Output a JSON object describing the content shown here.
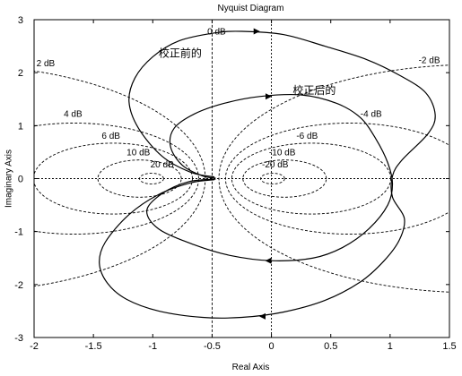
{
  "chart_data": {
    "type": "line",
    "title": "Nyquist Diagram",
    "xlabel": "Real Axis",
    "ylabel": "Imaginary Axis",
    "xlim": [
      -2,
      1.5
    ],
    "ylim": [
      -3,
      3
    ],
    "xticks": [
      -2,
      -1.5,
      -1,
      -0.5,
      0,
      0.5,
      1,
      1.5
    ],
    "yticks": [
      -3,
      -2,
      -1,
      0,
      1,
      2,
      3
    ],
    "xtick_labels": [
      "-2",
      "-1.5",
      "-1",
      "-0.5",
      "0",
      "0.5",
      "1",
      "1.5"
    ],
    "ytick_labels": [
      "-3",
      "-2",
      "-1",
      "0",
      "1",
      "2",
      "3"
    ],
    "grid": "M-circles (dashed)",
    "series": [
      {
        "name": "校正前的",
        "label_pos": [
          -0.95,
          2.3
        ],
        "points": [
          [
            -0.48,
            0.03
          ],
          [
            -0.68,
            0.12
          ],
          [
            -0.92,
            0.42
          ],
          [
            -1.12,
            0.95
          ],
          [
            -1.2,
            1.45
          ],
          [
            -1.15,
            1.9
          ],
          [
            -1.0,
            2.3
          ],
          [
            -0.78,
            2.6
          ],
          [
            -0.48,
            2.75
          ],
          [
            -0.25,
            2.78
          ],
          [
            0.1,
            2.72
          ],
          [
            0.45,
            2.5
          ],
          [
            0.8,
            2.25
          ],
          [
            1.08,
            1.95
          ],
          [
            1.3,
            1.62
          ],
          [
            1.38,
            1.2
          ],
          [
            1.32,
            0.85
          ],
          [
            1.1,
            0.35
          ],
          [
            1.02,
            0.05
          ],
          [
            1.02,
            -0.35
          ],
          [
            1.12,
            -0.75
          ],
          [
            1.08,
            -1.15
          ],
          [
            0.95,
            -1.55
          ],
          [
            0.75,
            -1.95
          ],
          [
            0.45,
            -2.3
          ],
          [
            0.1,
            -2.52
          ],
          [
            -0.25,
            -2.62
          ],
          [
            -0.58,
            -2.62
          ],
          [
            -0.95,
            -2.5
          ],
          [
            -1.22,
            -2.28
          ],
          [
            -1.38,
            -1.98
          ],
          [
            -1.45,
            -1.6
          ],
          [
            -1.4,
            -1.2
          ],
          [
            -1.2,
            -0.68
          ],
          [
            -0.95,
            -0.3
          ],
          [
            -0.68,
            -0.08
          ],
          [
            -0.48,
            -0.02
          ]
        ],
        "arrows": [
          [
            -0.15,
            2.78,
            1
          ],
          [
            -0.05,
            -2.6,
            -1
          ]
        ]
      },
      {
        "name": "校正后的",
        "label_pos": [
          0.18,
          1.6
        ],
        "points": [
          [
            -0.47,
            0.01
          ],
          [
            -0.58,
            0.05
          ],
          [
            -0.75,
            0.25
          ],
          [
            -0.85,
            0.6
          ],
          [
            -0.82,
            0.95
          ],
          [
            -0.65,
            1.22
          ],
          [
            -0.4,
            1.42
          ],
          [
            -0.1,
            1.55
          ],
          [
            0.25,
            1.58
          ],
          [
            0.55,
            1.42
          ],
          [
            0.75,
            1.15
          ],
          [
            0.88,
            0.75
          ],
          [
            0.98,
            0.3
          ],
          [
            1.02,
            -0.1
          ],
          [
            0.98,
            -0.5
          ],
          [
            0.82,
            -0.95
          ],
          [
            0.6,
            -1.3
          ],
          [
            0.35,
            -1.5
          ],
          [
            0.0,
            -1.55
          ],
          [
            -0.35,
            -1.45
          ],
          [
            -0.65,
            -1.25
          ],
          [
            -0.95,
            -0.95
          ],
          [
            -1.05,
            -0.6
          ],
          [
            -0.92,
            -0.28
          ],
          [
            -0.7,
            -0.06
          ],
          [
            -0.47,
            -0.01
          ]
        ],
        "arrows": [
          [
            -0.05,
            1.55,
            1
          ],
          [
            0.0,
            -1.55,
            -1
          ]
        ]
      }
    ],
    "m_circles": [
      {
        "db": 0,
        "label": "0 dB",
        "label_pos": [
          -0.54,
          2.72
        ]
      },
      {
        "db": 2,
        "label": "2 dB",
        "label_pos": [
          -1.98,
          2.12
        ]
      },
      {
        "db": -2,
        "label": "-2 dB",
        "label_pos": [
          1.24,
          2.18
        ]
      },
      {
        "db": 4,
        "label": "4 dB",
        "label_pos": [
          -1.75,
          1.17
        ]
      },
      {
        "db": -4,
        "label": "-4 dB",
        "label_pos": [
          0.75,
          1.17
        ]
      },
      {
        "db": 6,
        "label": "6 dB",
        "label_pos": [
          -1.43,
          0.75
        ]
      },
      {
        "db": -6,
        "label": "-6 dB",
        "label_pos": [
          0.21,
          0.75
        ]
      },
      {
        "db": 10,
        "label": "10 dB",
        "label_pos": [
          -1.22,
          0.44
        ]
      },
      {
        "db": -10,
        "label": "-10 dB",
        "label_pos": [
          -0.02,
          0.44
        ]
      },
      {
        "db": 20,
        "label": "20 dB",
        "label_pos": [
          -1.02,
          0.21
        ]
      },
      {
        "db": -20,
        "label": "-20 dB",
        "label_pos": [
          -0.08,
          0.21
        ]
      }
    ]
  }
}
